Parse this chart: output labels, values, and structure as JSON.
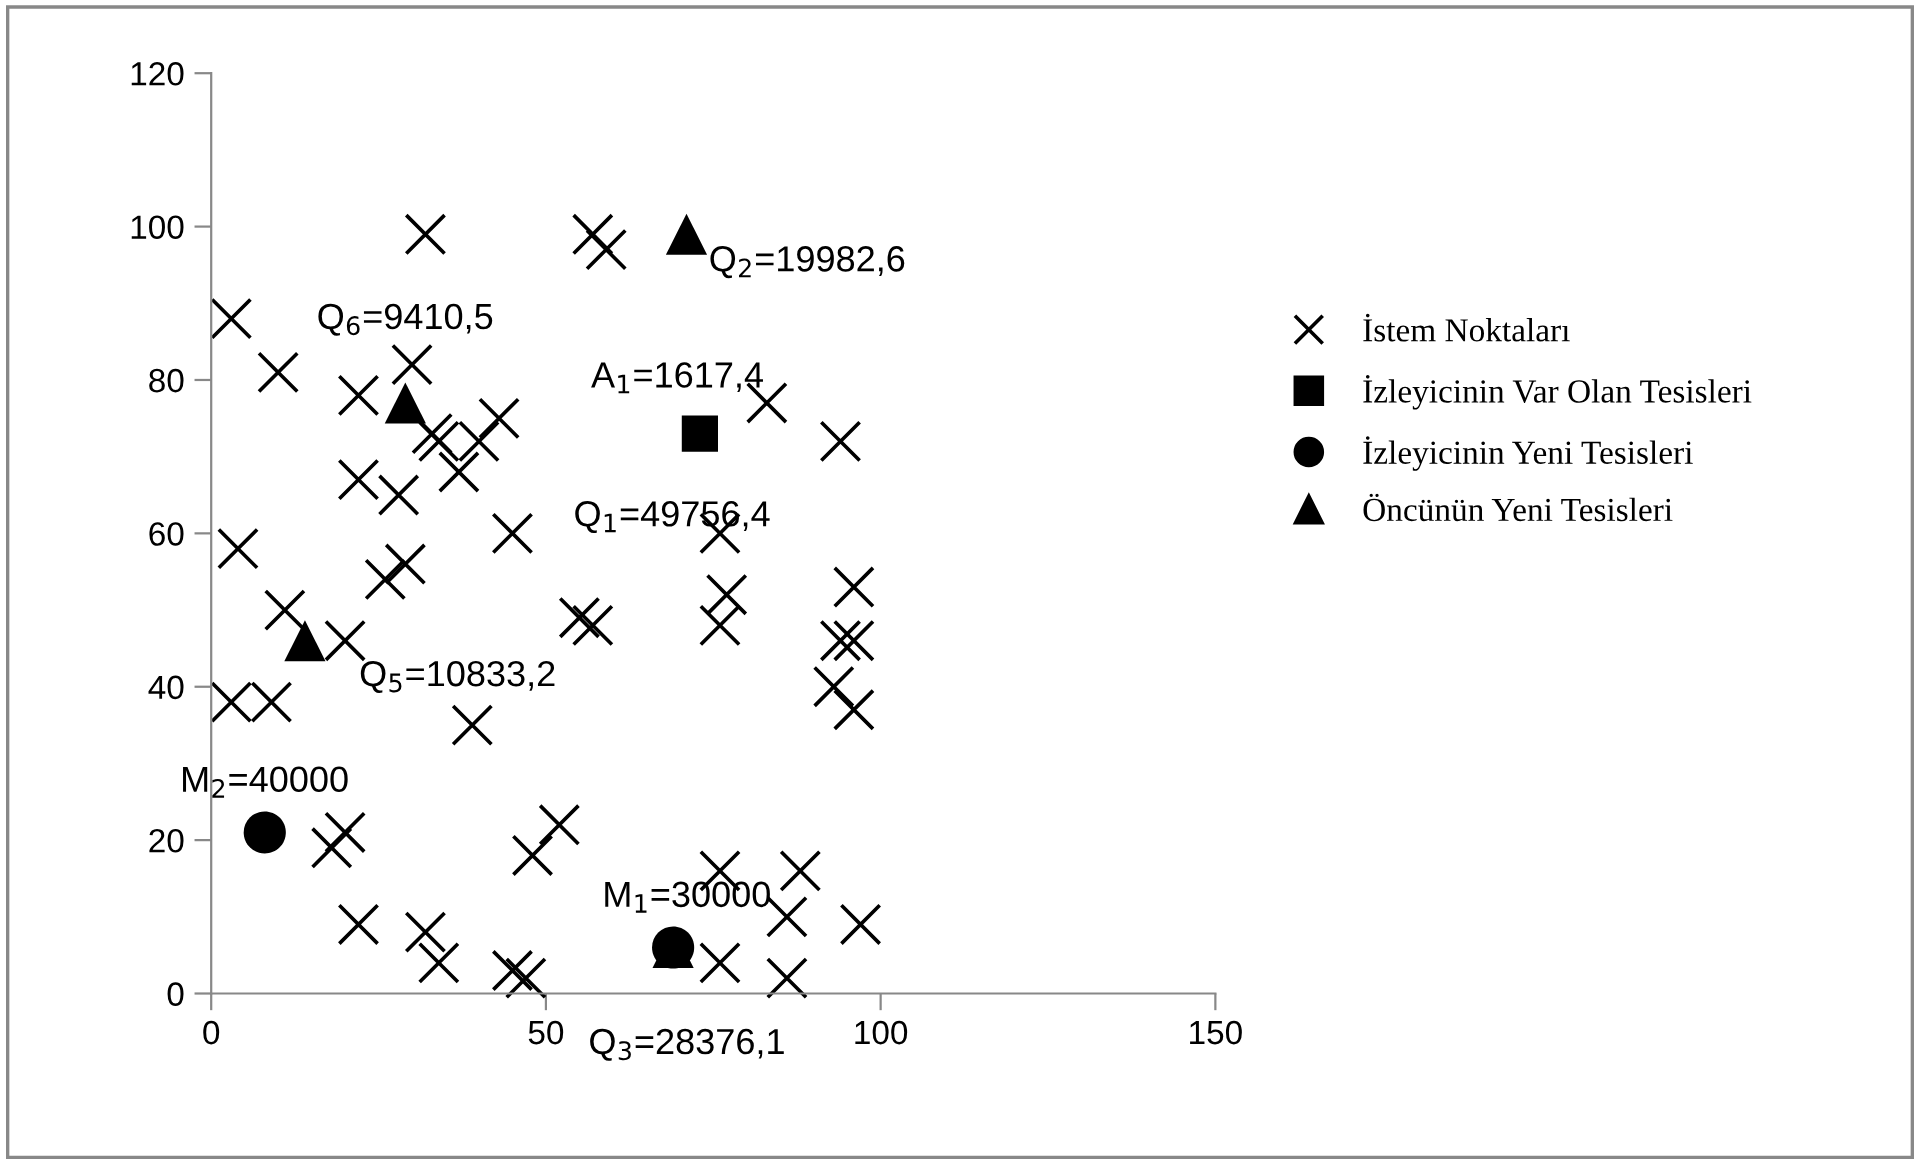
{
  "chart_data": {
    "type": "scatter",
    "xlim": [
      0,
      150
    ],
    "ylim": [
      0,
      120
    ],
    "xticks": [
      0,
      50,
      100,
      150
    ],
    "yticks": [
      0,
      20,
      40,
      60,
      80,
      100,
      120
    ],
    "grid": false,
    "legend": "right",
    "series": [
      {
        "name": "İstem Noktaları",
        "color": "#000000",
        "marker": "cross",
        "x": [
          32,
          57,
          59,
          3,
          10,
          30,
          22,
          33,
          34,
          43,
          40,
          37,
          22,
          28,
          45,
          4,
          29,
          26,
          11,
          55,
          57,
          83,
          94,
          76,
          77,
          96,
          76,
          94,
          96,
          93,
          96,
          76,
          88,
          86,
          97,
          76,
          86,
          20,
          3,
          9,
          39,
          20,
          18,
          52,
          48,
          22,
          32,
          34,
          45,
          47
        ],
        "values": [
          99,
          99,
          97,
          88,
          81,
          82,
          78,
          73,
          72,
          75,
          72,
          68,
          67,
          65,
          60,
          58,
          56,
          54,
          50,
          49,
          48,
          77,
          72,
          60,
          52,
          53,
          48,
          46,
          46,
          40,
          37,
          16,
          16,
          10,
          9,
          4,
          2,
          46,
          38,
          38,
          35,
          21,
          19,
          22,
          18,
          9,
          8,
          4,
          3,
          2
        ]
      },
      {
        "name": "İzleyicinin Var Olan Tesisleri",
        "color": "#000000",
        "marker": "square",
        "x": [
          73
        ],
        "values": [
          73
        ]
      },
      {
        "name": "İzleyicinin Yeni Tesisleri",
        "color": "#000000",
        "marker": "circle",
        "x": [
          8,
          69
        ],
        "values": [
          21,
          6
        ]
      },
      {
        "name": "Öncünün Yeni Tesisleri",
        "color": "#000000",
        "marker": "triangle",
        "x": [
          71,
          29,
          14,
          69
        ],
        "values": [
          99,
          77,
          46,
          6
        ]
      }
    ],
    "annotations": [
      {
        "text": "Q$_{2}$=19982,6",
        "x": 71,
        "y": 99
      },
      {
        "text": "A$_{1}$=1617,4",
        "x": 73,
        "y": 73
      },
      {
        "text": "Q$_{1}$=49756,4",
        "x": 73,
        "y": 73
      },
      {
        "text": "Q$_{6}$=9410,5",
        "x": 29,
        "y": 77
      },
      {
        "text": "Q$_{5}$=10833,2",
        "x": 14,
        "y": 46
      },
      {
        "text": "M$_{2}$=40000",
        "x": 8,
        "y": 21
      },
      {
        "text": "M$_{1}$=30000",
        "x": 69,
        "y": 6
      },
      {
        "text": "Q$_{3}$=28376,1",
        "x": 69,
        "y": 6
      }
    ]
  }
}
